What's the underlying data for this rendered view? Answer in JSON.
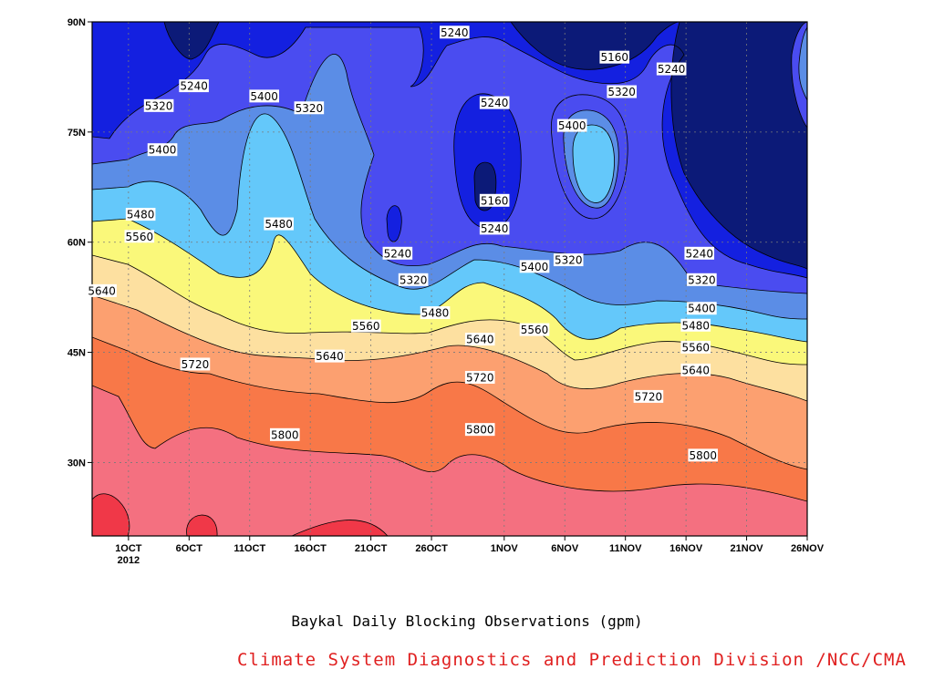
{
  "caption": "Baykal Daily Blocking Observations (gpm)",
  "credit": "Climate System Diagnostics and Prediction Division /NCC/CMA",
  "chart_data": {
    "type": "contour",
    "title": "",
    "xlabel": "",
    "ylabel": "",
    "x_ticks": [
      "1OCT",
      "6OCT",
      "11OCT",
      "16OCT",
      "21OCT",
      "26OCT",
      "1NOV",
      "6NOV",
      "11NOV",
      "16NOV",
      "21NOV",
      "26NOV"
    ],
    "x_tick_days": [
      0,
      5,
      10,
      15,
      20,
      25,
      31,
      36,
      41,
      46,
      51,
      56
    ],
    "x_year_label": "2012",
    "xlim_days": [
      -3,
      56
    ],
    "y_ticks": [
      "30N",
      "45N",
      "60N",
      "75N",
      "90N"
    ],
    "y_tick_values": [
      30,
      45,
      60,
      75,
      90
    ],
    "ylim": [
      20,
      90
    ],
    "grid": true,
    "contour_interval": 80,
    "levels": [
      5160,
      5240,
      5320,
      5400,
      5480,
      5560,
      5640,
      5720,
      5800,
      5880
    ],
    "fill_colors": {
      "below_5160": "#0c1a78",
      "5160_5240": "#1420e0",
      "5240_5320": "#4a4cf0",
      "5320_5400": "#5b8de6",
      "5400_5480": "#64c8fa",
      "5480_5560": "#faf87a",
      "5560_5640": "#fde0a0",
      "5640_5720": "#fca070",
      "5720_5800": "#f87848",
      "5800_5880": "#f47080",
      "above_5880": "#f03848"
    },
    "contour_labels": [
      {
        "value": "5240",
        "day": 26.9,
        "lat": 88.6
      },
      {
        "value": "5160",
        "day": 40.1,
        "lat": 85.2
      },
      {
        "value": "5240",
        "day": 44.8,
        "lat": 83.6
      },
      {
        "value": "5240",
        "day": 5.4,
        "lat": 81.3
      },
      {
        "value": "5400",
        "day": 11.2,
        "lat": 79.9
      },
      {
        "value": "5320",
        "day": 14.9,
        "lat": 78.3
      },
      {
        "value": "5320",
        "day": 2.5,
        "lat": 78.6
      },
      {
        "value": "5320",
        "day": 40.7,
        "lat": 80.5
      },
      {
        "value": "5240",
        "day": 30.2,
        "lat": 79.0
      },
      {
        "value": "5400",
        "day": 36.6,
        "lat": 75.9
      },
      {
        "value": "5400",
        "day": 2.8,
        "lat": 72.6
      },
      {
        "value": "5160",
        "day": 30.2,
        "lat": 65.7
      },
      {
        "value": "5480",
        "day": 1.0,
        "lat": 63.8
      },
      {
        "value": "5480",
        "day": 12.4,
        "lat": 62.5
      },
      {
        "value": "5240",
        "day": 30.2,
        "lat": 61.9
      },
      {
        "value": "5560",
        "day": 0.9,
        "lat": 60.8
      },
      {
        "value": "5240",
        "day": 22.2,
        "lat": 58.5
      },
      {
        "value": "5240",
        "day": 47.1,
        "lat": 58.5
      },
      {
        "value": "5320",
        "day": 36.3,
        "lat": 57.6
      },
      {
        "value": "5400",
        "day": 33.5,
        "lat": 56.7
      },
      {
        "value": "5320",
        "day": 23.5,
        "lat": 54.9
      },
      {
        "value": "5320",
        "day": 47.3,
        "lat": 54.9
      },
      {
        "value": "5640",
        "day": -2.2,
        "lat": 53.4
      },
      {
        "value": "5400",
        "day": 47.3,
        "lat": 51.0
      },
      {
        "value": "5480",
        "day": 25.3,
        "lat": 50.4
      },
      {
        "value": "5560",
        "day": 19.6,
        "lat": 48.6
      },
      {
        "value": "5560",
        "day": 33.5,
        "lat": 48.1
      },
      {
        "value": "5480",
        "day": 46.8,
        "lat": 48.7
      },
      {
        "value": "5640",
        "day": 29.0,
        "lat": 46.8
      },
      {
        "value": "5560",
        "day": 46.8,
        "lat": 45.7
      },
      {
        "value": "5640",
        "day": 16.6,
        "lat": 44.5
      },
      {
        "value": "5720",
        "day": 5.5,
        "lat": 43.4
      },
      {
        "value": "5640",
        "day": 46.8,
        "lat": 42.6
      },
      {
        "value": "5720",
        "day": 29.0,
        "lat": 41.6
      },
      {
        "value": "5720",
        "day": 42.9,
        "lat": 39.0
      },
      {
        "value": "5800",
        "day": 29.0,
        "lat": 34.5
      },
      {
        "value": "5800",
        "day": 12.9,
        "lat": 33.8
      },
      {
        "value": "5800",
        "day": 47.4,
        "lat": 31.0
      }
    ]
  }
}
